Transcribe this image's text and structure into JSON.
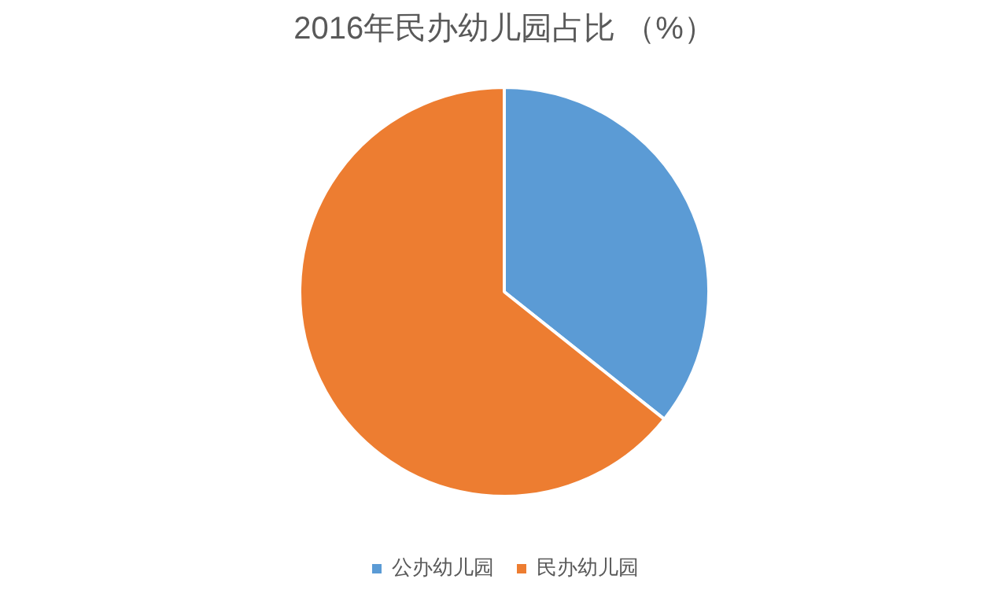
{
  "chart_data": {
    "type": "pie",
    "title": "2016年民办幼儿园占比 （%）",
    "categories": [
      "公办幼儿园",
      "民办幼儿园"
    ],
    "values": [
      35.7,
      64.3
    ],
    "colors": [
      "#5b9bd5",
      "#ed7d31"
    ],
    "legend": "bottom"
  }
}
